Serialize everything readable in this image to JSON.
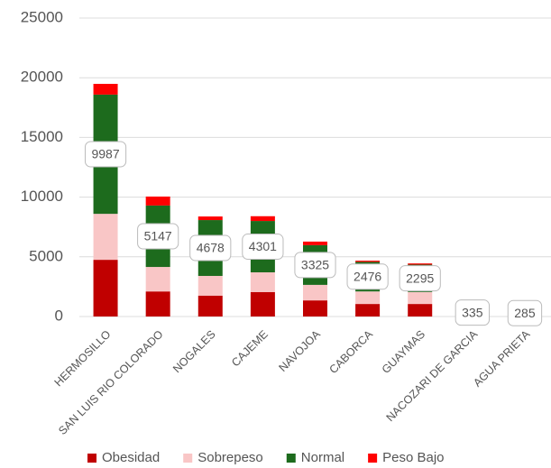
{
  "chart_data": {
    "type": "stacked-bar",
    "categories": [
      "HERMOSILLO",
      "SAN LUIS RIO COLORADO",
      "NOGALES",
      "CAJEME",
      "NAVOJOA",
      "CABORCA",
      "GUAYMAS",
      "NACOZARI DE GARCIA",
      "AGUA PRIETA"
    ],
    "series": [
      {
        "name": "Obesidad",
        "color": "#c00000",
        "values": [
          4750,
          2100,
          1750,
          2050,
          1350,
          1050,
          1050,
          80,
          70
        ]
      },
      {
        "name": "Sobrepeso",
        "color": "#f9c6c6",
        "values": [
          3850,
          2050,
          1650,
          1650,
          1300,
          1050,
          1000,
          80,
          70
        ]
      },
      {
        "name": "Normal",
        "color": "#1d6b1d",
        "values": [
          9987,
          5147,
          4678,
          4301,
          3325,
          2476,
          2295,
          335,
          285
        ]
      },
      {
        "name": "Peso Bajo",
        "color": "#ff0000",
        "values": [
          900,
          750,
          300,
          400,
          300,
          100,
          100,
          10,
          10
        ]
      }
    ],
    "data_labels_series": "Normal",
    "ylim": [
      0,
      25000
    ],
    "yticks": [
      0,
      5000,
      10000,
      15000,
      20000,
      25000
    ],
    "grid": true,
    "legend": "bottom"
  }
}
